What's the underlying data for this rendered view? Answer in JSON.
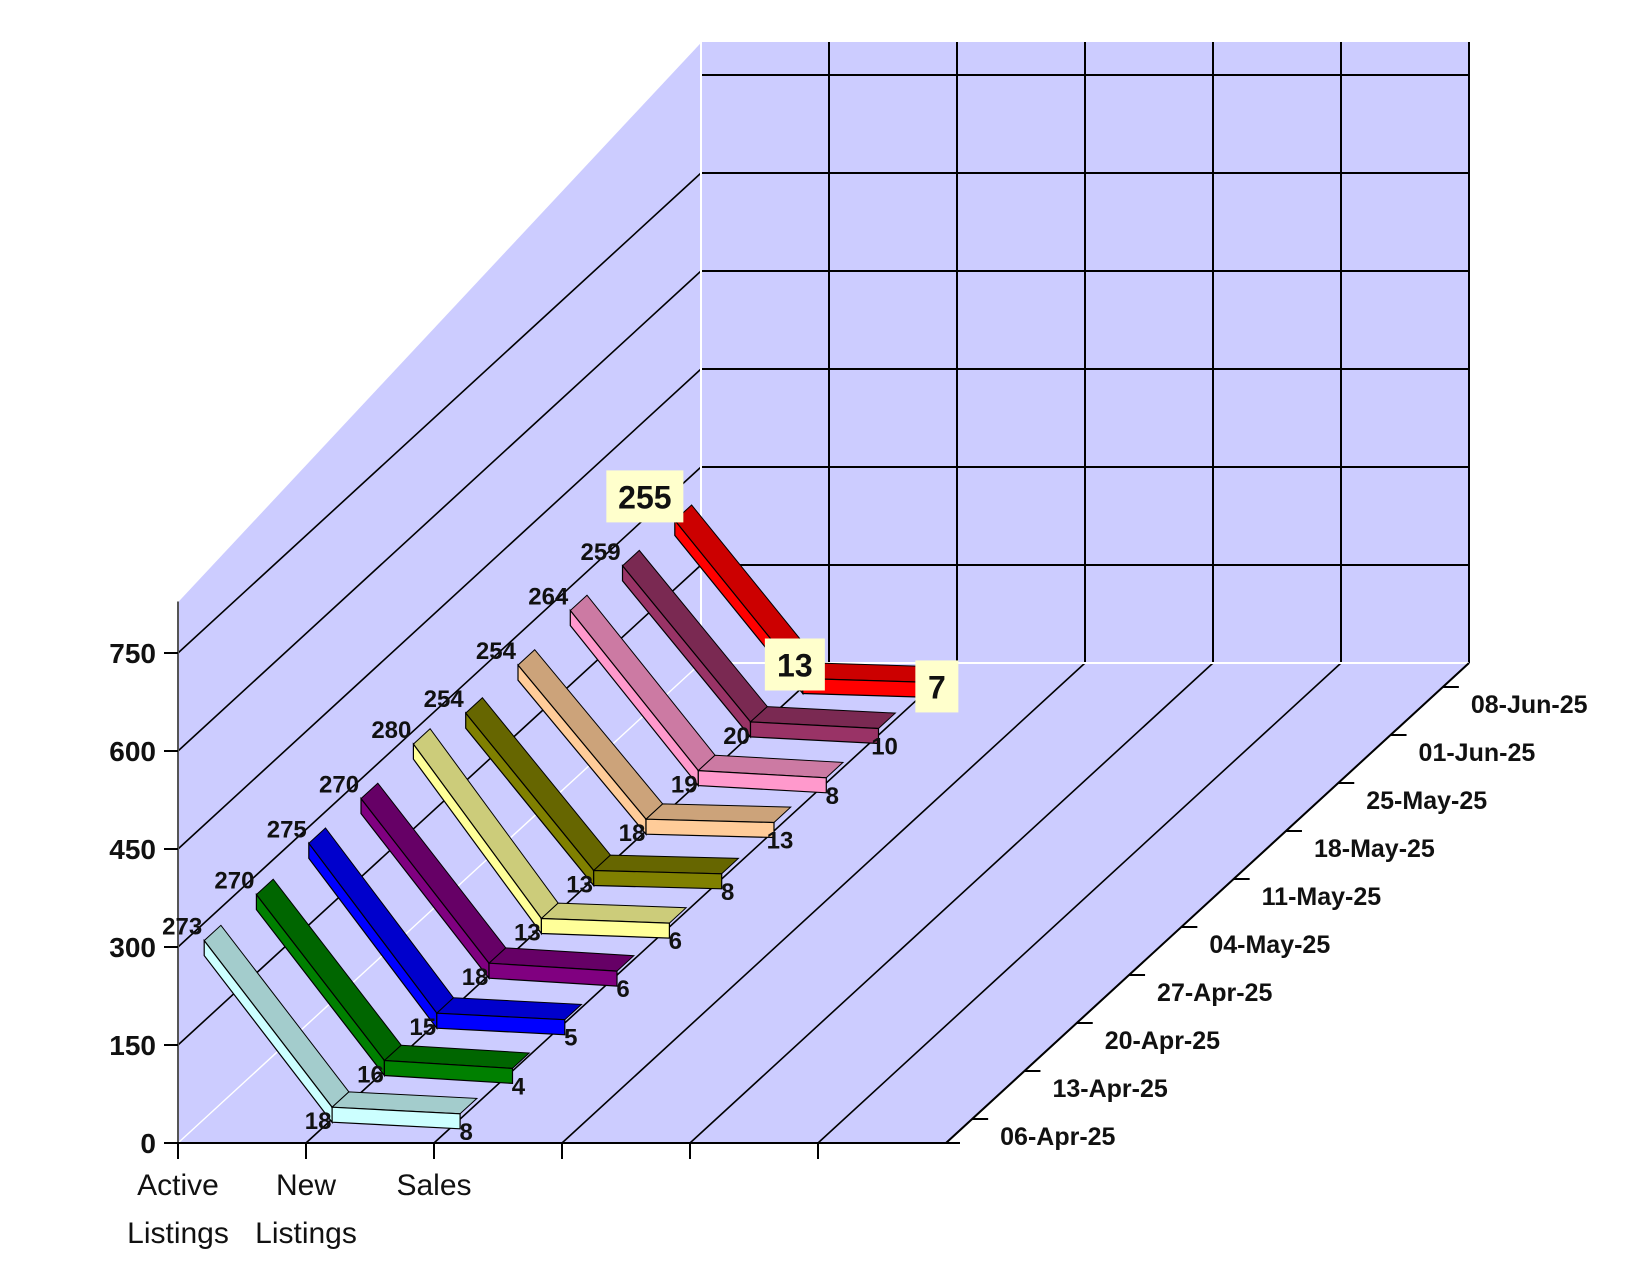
{
  "chart_data": {
    "type": "line",
    "view": "3d",
    "categories": [
      [
        "Active",
        "Listings"
      ],
      [
        "New",
        "Listings"
      ],
      [
        "Sales"
      ]
    ],
    "ylim": [
      0,
      750
    ],
    "yticks": [
      0,
      150,
      300,
      450,
      600,
      750
    ],
    "grid": true,
    "series": [
      {
        "name": "06-Apr-25",
        "values": [
          273,
          18,
          8
        ],
        "color": "#ccffff"
      },
      {
        "name": "13-Apr-25",
        "values": [
          270,
          16,
          4
        ],
        "color": "#008000"
      },
      {
        "name": "20-Apr-25",
        "values": [
          275,
          15,
          5
        ],
        "color": "#0000ff"
      },
      {
        "name": "27-Apr-25",
        "values": [
          270,
          18,
          6
        ],
        "color": "#800080"
      },
      {
        "name": "04-May-25",
        "values": [
          280,
          13,
          6
        ],
        "color": "#ffff99"
      },
      {
        "name": "11-May-25",
        "values": [
          254,
          13,
          8
        ],
        "color": "#808000"
      },
      {
        "name": "18-May-25",
        "values": [
          254,
          18,
          13
        ],
        "color": "#ffcc99"
      },
      {
        "name": "25-May-25",
        "values": [
          264,
          19,
          8
        ],
        "color": "#ff99cc"
      },
      {
        "name": "01-Jun-25",
        "values": [
          259,
          20,
          10
        ],
        "color": "#993366"
      },
      {
        "name": "08-Jun-25",
        "values": [
          255,
          13,
          7
        ],
        "color": "#ff0000",
        "highlight": true
      }
    ],
    "colors": {
      "wall": "#ccccff",
      "grid_line": "#000000",
      "edge": "#ffffff",
      "highlight_label_bg": "#ffffcc"
    }
  }
}
